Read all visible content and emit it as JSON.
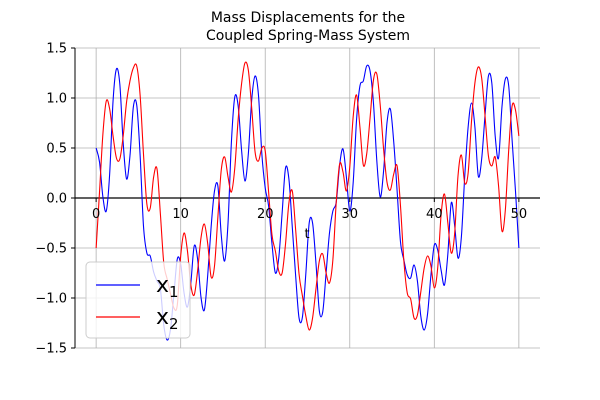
{
  "chart_data": {
    "type": "line",
    "title_lines": [
      "Mass Displacements for the",
      "Coupled Spring-Mass System"
    ],
    "xlabel": "t",
    "xlim": [
      -2.5,
      52.5
    ],
    "ylim": [
      -1.5,
      1.5
    ],
    "xticks": [
      0,
      10,
      20,
      30,
      40,
      50
    ],
    "yticks": [
      -1.5,
      -1.0,
      -0.5,
      0.0,
      0.5,
      1.0,
      1.5
    ],
    "xtick_labels": [
      "0",
      "10",
      "20",
      "30",
      "40",
      "50"
    ],
    "ytick_labels": [
      "−1.5",
      "−1.0",
      "−0.5",
      "0.0",
      "0.5",
      "1.0",
      "1.5"
    ],
    "grid": true,
    "legend_position": "lower-left",
    "legend": {
      "x1_base": "x",
      "x1_sub": "1",
      "x2_base": "x",
      "x2_sub": "2"
    },
    "series": [
      {
        "color": "#0000ff",
        "t": [
          0.0,
          0.4,
          0.8,
          1.2,
          1.6,
          2.0,
          2.4,
          2.8,
          3.2,
          3.6,
          4.0,
          4.4,
          4.8,
          5.2,
          5.6,
          6.0,
          6.4,
          6.8,
          7.2,
          7.6,
          8.0,
          8.4,
          8.8,
          9.2,
          9.6,
          10.0,
          10.4,
          10.8,
          11.2,
          11.6,
          12.0,
          12.4,
          12.8,
          13.2,
          13.6,
          14.0,
          14.4,
          14.8,
          15.2,
          15.6,
          16.0,
          16.4,
          16.8,
          17.2,
          17.6,
          18.0,
          18.4,
          18.8,
          19.2,
          19.6,
          20.0,
          20.4,
          20.8,
          21.2,
          21.6,
          22.0,
          22.4,
          22.8,
          23.2,
          23.6,
          24.0,
          24.4,
          24.8,
          25.2,
          25.6,
          26.0,
          26.4,
          26.8,
          27.2,
          27.6,
          28.0,
          28.4,
          28.8,
          29.2,
          29.6,
          30.0,
          30.4,
          30.8,
          31.2,
          31.6,
          32.0,
          32.4,
          32.8,
          33.2,
          33.6,
          34.0,
          34.4,
          34.8,
          35.2,
          35.6,
          36.0,
          36.4,
          36.8,
          37.2,
          37.6,
          38.0,
          38.4,
          38.8,
          39.2,
          39.6,
          40.0,
          40.4,
          40.8,
          41.2,
          41.6,
          42.0,
          42.4,
          42.8,
          43.2,
          43.6,
          44.0,
          44.4,
          44.8,
          45.2,
          45.6,
          46.0,
          46.4,
          46.8,
          47.2,
          47.6,
          48.0,
          48.4,
          48.8,
          49.2,
          49.6,
          50.0
        ],
        "values": [
          0.5,
          0.36,
          0.01,
          -0.13,
          0.24,
          0.97,
          1.29,
          1.14,
          0.55,
          0.19,
          0.42,
          0.91,
          0.93,
          0.43,
          -0.28,
          -0.55,
          -0.58,
          -0.74,
          -0.83,
          -0.91,
          -1.27,
          -1.42,
          -1.31,
          -0.96,
          -0.61,
          -0.66,
          -0.95,
          -1.09,
          -0.85,
          -0.48,
          -0.61,
          -0.99,
          -1.12,
          -0.77,
          -0.29,
          0.07,
          0.12,
          -0.37,
          -0.63,
          -0.25,
          0.56,
          1.01,
          0.92,
          0.48,
          0.17,
          0.44,
          0.98,
          1.22,
          1.03,
          0.44,
          0.1,
          -0.08,
          -0.46,
          -0.75,
          -0.6,
          -0.15,
          0.3,
          0.19,
          -0.29,
          -0.78,
          -1.2,
          -1.19,
          -0.76,
          -0.25,
          -0.25,
          -0.65,
          -1.13,
          -1.14,
          -0.75,
          -0.35,
          -0.13,
          -0.04,
          0.33,
          0.49,
          0.21,
          -0.13,
          0.15,
          0.78,
          1.12,
          1.17,
          1.32,
          1.27,
          0.95,
          0.37,
          0.01,
          0.27,
          0.75,
          0.89,
          0.56,
          0.07,
          -0.44,
          -0.62,
          -0.77,
          -0.8,
          -0.67,
          -0.83,
          -1.18,
          -1.32,
          -1.16,
          -0.77,
          -0.47,
          -0.52,
          -0.72,
          -0.87,
          -0.56,
          -0.05,
          -0.27,
          -0.6,
          -0.39,
          0.22,
          0.71,
          0.95,
          0.71,
          0.22,
          0.39,
          0.83,
          1.22,
          1.15,
          0.62,
          0.4,
          0.91,
          1.19,
          1.12,
          0.58,
          0.07,
          -0.5
        ]
      },
      {
        "color": "#ff0000",
        "t": [
          0.0,
          0.4,
          0.8,
          1.2,
          1.6,
          2.0,
          2.4,
          2.8,
          3.2,
          3.6,
          4.0,
          4.4,
          4.8,
          5.2,
          5.6,
          6.0,
          6.4,
          6.8,
          7.2,
          7.6,
          8.0,
          8.4,
          8.8,
          9.2,
          9.6,
          10.0,
          10.4,
          10.8,
          11.2,
          11.6,
          12.0,
          12.4,
          12.8,
          13.2,
          13.6,
          14.0,
          14.4,
          14.8,
          15.2,
          15.6,
          16.0,
          16.4,
          16.8,
          17.2,
          17.6,
          18.0,
          18.4,
          18.8,
          19.2,
          19.6,
          20.0,
          20.4,
          20.8,
          21.2,
          21.6,
          22.0,
          22.4,
          22.8,
          23.2,
          23.6,
          24.0,
          24.4,
          24.8,
          25.2,
          25.6,
          26.0,
          26.4,
          26.8,
          27.2,
          27.6,
          28.0,
          28.4,
          28.8,
          29.2,
          29.6,
          30.0,
          30.4,
          30.8,
          31.2,
          31.6,
          32.0,
          32.4,
          32.8,
          33.2,
          33.6,
          34.0,
          34.4,
          34.8,
          35.2,
          35.6,
          36.0,
          36.4,
          36.8,
          37.2,
          37.6,
          38.0,
          38.4,
          38.8,
          39.2,
          39.6,
          40.0,
          40.4,
          40.8,
          41.2,
          41.6,
          42.0,
          42.4,
          42.8,
          43.2,
          43.6,
          44.0,
          44.4,
          44.8,
          45.2,
          45.6,
          46.0,
          46.4,
          46.8,
          47.2,
          47.6,
          48.0,
          48.4,
          48.8,
          49.2,
          49.6,
          50.0
        ],
        "values": [
          -0.5,
          0.06,
          0.64,
          0.97,
          0.89,
          0.62,
          0.4,
          0.39,
          0.62,
          0.96,
          1.17,
          1.3,
          1.32,
          1.03,
          0.44,
          -0.06,
          -0.1,
          0.21,
          0.29,
          -0.16,
          -0.65,
          -0.81,
          -0.96,
          -1.1,
          -1.07,
          -0.58,
          -0.35,
          -0.53,
          -0.87,
          -0.97,
          -0.73,
          -0.4,
          -0.26,
          -0.46,
          -0.79,
          -0.68,
          -0.19,
          0.28,
          0.41,
          0.21,
          0.06,
          0.3,
          0.79,
          1.14,
          1.35,
          1.28,
          0.9,
          0.46,
          0.37,
          0.5,
          0.47,
          0.06,
          -0.37,
          -0.53,
          -0.73,
          -0.75,
          -0.46,
          -0.05,
          0.07,
          -0.32,
          -0.76,
          -0.98,
          -1.18,
          -1.32,
          -1.2,
          -0.91,
          -0.63,
          -0.56,
          -0.75,
          -0.85,
          -0.62,
          -0.04,
          0.34,
          0.26,
          0.07,
          0.31,
          0.81,
          1.03,
          0.71,
          0.33,
          0.44,
          0.8,
          1.18,
          1.24,
          0.93,
          0.49,
          0.16,
          0.08,
          0.24,
          0.32,
          -0.08,
          -0.63,
          -0.95,
          -1.01,
          -1.2,
          -1.17,
          -0.94,
          -0.7,
          -0.58,
          -0.68,
          -0.9,
          -0.7,
          -0.17,
          0.04,
          -0.25,
          -0.55,
          -0.36,
          0.22,
          0.43,
          0.15,
          0.25,
          0.77,
          1.15,
          1.31,
          1.2,
          0.82,
          0.42,
          0.32,
          0.41,
          0.12,
          -0.33,
          -0.12,
          0.48,
          0.92,
          0.88,
          0.62
        ]
      }
    ]
  }
}
